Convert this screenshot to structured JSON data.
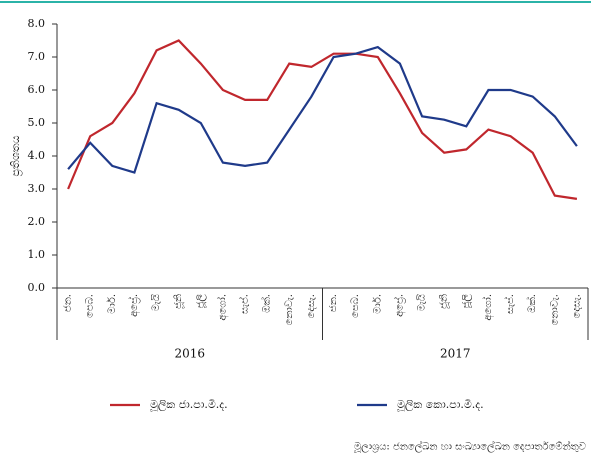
{
  "chart_data": {
    "type": "line",
    "y_label": "ප්‍රතිශතය",
    "categories": [
      "ජන.",
      "පෙබ.",
      "මාර්.",
      "අප්‍රේ.",
      "මැයි",
      "ජූනි",
      "ජූලි",
      "අගෝ.",
      "සැප්.",
      "ඔක්.",
      "නොවැ.",
      "දෙසැ.",
      "ජන.",
      "පෙබ.",
      "මාර්.",
      "අප්‍රේ.",
      "මැයි",
      "ජූනි",
      "ජූලි",
      "අගෝ.",
      "සැප්.",
      "ඔක්.",
      "නොවැ.",
      "දෙසැ."
    ],
    "years": [
      "2016",
      "2017"
    ],
    "series": [
      {
        "name": "මූලික ජා.පා.මි.ද.",
        "color": "#c0272d",
        "values": [
          3.0,
          4.6,
          5.0,
          5.9,
          7.2,
          7.5,
          6.8,
          6.0,
          5.7,
          5.7,
          6.8,
          6.7,
          7.1,
          7.1,
          7.0,
          5.9,
          4.7,
          4.1,
          4.2,
          4.8,
          4.6,
          4.1,
          2.8,
          2.7
        ]
      },
      {
        "name": "මූලික කො.පා.මි.ද.",
        "color": "#1f3a8a",
        "values": [
          3.6,
          4.4,
          3.7,
          3.5,
          5.6,
          5.4,
          5.0,
          3.8,
          3.7,
          3.8,
          4.8,
          5.8,
          7.0,
          7.1,
          7.3,
          6.8,
          5.2,
          5.1,
          4.9,
          6.0,
          6.0,
          5.8,
          5.2,
          4.3
        ]
      }
    ],
    "ylim": [
      0,
      8
    ],
    "yticks": [
      {
        "value": 0,
        "label": "0.0"
      },
      {
        "value": 1,
        "label": "1.0"
      },
      {
        "value": 2,
        "label": "2.0"
      },
      {
        "value": 3,
        "label": "3.0"
      },
      {
        "value": 4,
        "label": "4.0"
      },
      {
        "value": 5,
        "label": "5.0"
      },
      {
        "value": 6,
        "label": "6.0"
      },
      {
        "value": 7,
        "label": "7.0"
      },
      {
        "value": 8,
        "label": "8.0"
      }
    ],
    "source": "මූලාශ්‍රය: ජනලේඛන හා සංඛ්‍යාලේඛන දෙපාර්තමේන්තුව"
  }
}
